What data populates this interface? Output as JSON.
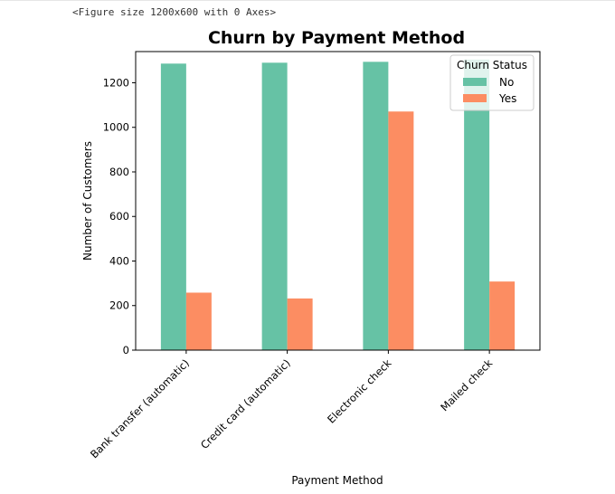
{
  "notebook": {
    "output_text": "<Figure size 1200x600 with 0 Axes>"
  },
  "chart_data": {
    "type": "bar",
    "title": "Churn by Payment Method",
    "xlabel": "Payment Method",
    "ylabel": "Number of Customers",
    "categories": [
      "Bank transfer (automatic)",
      "Credit card (automatic)",
      "Electronic check",
      "Mailed check"
    ],
    "series": [
      {
        "name": "No",
        "values": [
          1286,
          1290,
          1294,
          1304
        ],
        "color": "#66c2a5"
      },
      {
        "name": "Yes",
        "values": [
          258,
          232,
          1071,
          308
        ],
        "color": "#fc8d62"
      }
    ],
    "ylim": [
      0,
      1340
    ],
    "yticks": [
      0,
      200,
      400,
      600,
      800,
      1000,
      1200
    ],
    "grid": false,
    "legend": {
      "title": "Churn Status",
      "placement": "top-right"
    }
  }
}
